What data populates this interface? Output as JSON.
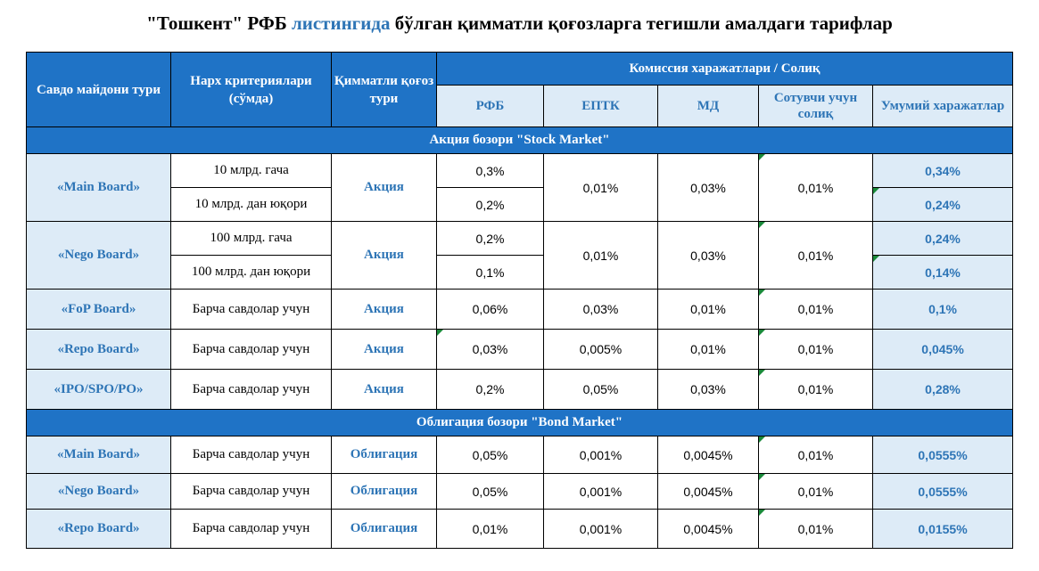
{
  "title": {
    "part1": "\"Тошкент\" РФБ ",
    "part2": "листингида",
    "part3": " бўлган қимматли қоғозларга тегишли амалдаги тарифлар",
    "accent_color": "#2e75b6"
  },
  "header": {
    "platform": "Савдо майдони тури",
    "price_criteria": "Нарх критериялари (сўмда)",
    "security_type": "Қимматли қоғоз тури",
    "commission": "Комиссия харажатлари / Солиқ",
    "col_rfb": "РФБ",
    "col_eptk": "ЕПТК",
    "col_md": "МД",
    "col_tax": "Сотувчи учун солиқ",
    "col_total": "Умумий харажатлар"
  },
  "sections": {
    "stock": "Акция бозори \"Stock Market\"",
    "bond": "Облигация бозори \"Bond Market\""
  },
  "stock": {
    "main": {
      "board": "«Main Board»",
      "type": "Акция",
      "crit1": "10 млрд. гача",
      "crit2": "10 млрд. дан юқори",
      "rfb1": "0,3%",
      "rfb2": "0,2%",
      "eptk": "0,01%",
      "md": "0,03%",
      "tax": "0,01%",
      "total1": "0,34%",
      "total2": "0,24%"
    },
    "nego": {
      "board": "«Nego Board»",
      "type": "Акция",
      "crit1": "100 млрд. гача",
      "crit2": "100 млрд. дан юқори",
      "rfb1": "0,2%",
      "rfb2": "0,1%",
      "eptk": "0,01%",
      "md": "0,03%",
      "tax": "0,01%",
      "total1": "0,24%",
      "total2": "0,14%"
    },
    "fop": {
      "board": "«FoP Board»",
      "crit": "Барча савдолар учун",
      "type": "Акция",
      "rfb": "0,06%",
      "eptk": "0,03%",
      "md": "0,01%",
      "tax": "0,01%",
      "total": "0,1%"
    },
    "repo": {
      "board": "«Repo Board»",
      "crit": "Барча савдолар учун",
      "type": "Акция",
      "rfb": "0,03%",
      "eptk": "0,005%",
      "md": "0,01%",
      "tax": "0,01%",
      "total": "0,045%"
    },
    "ipo": {
      "board": "«IPO/SPO/PO»",
      "crit": "Барча савдолар учун",
      "type": "Акция",
      "rfb": "0,2%",
      "eptk": "0,05%",
      "md": "0,03%",
      "tax": "0,01%",
      "total": "0,28%"
    }
  },
  "bond": {
    "main": {
      "board": "«Main Board»",
      "crit": "Барча савдолар учун",
      "type": "Облигация",
      "rfb": "0,05%",
      "eptk": "0,001%",
      "md": "0,0045%",
      "tax": "0,01%",
      "total": "0,0555%"
    },
    "nego": {
      "board": "«Nego Board»",
      "crit": "Барча савдолар учун",
      "type": "Облигация",
      "rfb": "0,05%",
      "eptk": "0,001%",
      "md": "0,0045%",
      "tax": "0,01%",
      "total": "0,0555%"
    },
    "repo": {
      "board": "«Repo Board»",
      "crit": "Барча савдолар учун",
      "type": "Облигация",
      "rfb": "0,01%",
      "eptk": "0,001%",
      "md": "0,0045%",
      "tax": "0,01%",
      "total": "0,0155%"
    }
  }
}
